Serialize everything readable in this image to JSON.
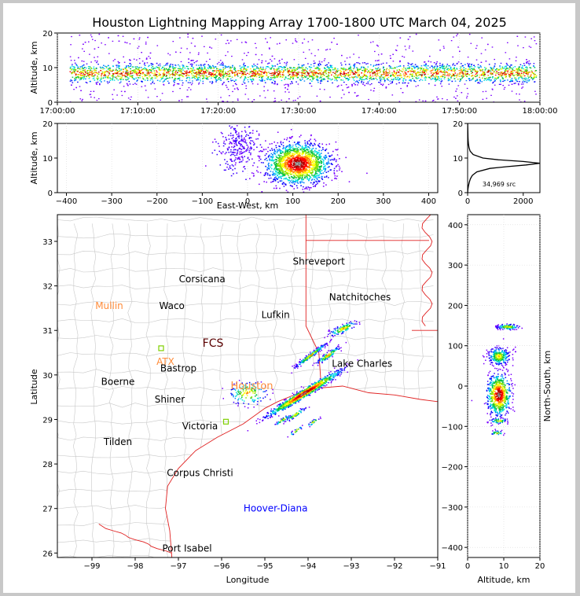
{
  "figure": {
    "title": "Houston Lightning Mapping Array 1700-1800 UTC March 04, 2025",
    "background": "#ffffff",
    "frame_color": "#c8c8c8"
  },
  "chart_data": [
    {
      "id": "altitude-time",
      "type": "scatter",
      "ylabel": "Altitude, km",
      "xlabel": "",
      "xlim": [
        "17:00:00",
        "18:00:00"
      ],
      "xticks": [
        "17:00:00",
        "17:10:00",
        "17:20:00",
        "17:30:00",
        "17:40:00",
        "17:50:00",
        "18:00:00"
      ],
      "ylim": [
        0,
        20
      ],
      "yticks": [
        "0",
        "10",
        "20"
      ],
      "dense_band_altitude_km": [
        6,
        12
      ],
      "peak_altitude_km": 8.5,
      "colormap": "rainbow density",
      "grid": true
    },
    {
      "id": "altitude-eastwest",
      "type": "scatter",
      "xlabel": "East-West, km",
      "ylabel": "Altitude, km",
      "xlim": [
        -420,
        420
      ],
      "xticks": [
        "−400",
        "−300",
        "−200",
        "−100",
        "0",
        "100",
        "200",
        "300",
        "400"
      ],
      "ylim": [
        0,
        20
      ],
      "yticks": [
        "0",
        "10",
        "20"
      ],
      "clusters": [
        {
          "x_range_km": [
            60,
            220
          ],
          "alt_range_km": [
            1,
            16
          ],
          "center_x_km": 110,
          "center_alt_km": 8.5,
          "density": "high"
        },
        {
          "x_range_km": [
            -70,
            30
          ],
          "alt_range_km": [
            3,
            20
          ],
          "center_x_km": -20,
          "center_alt_km": 13,
          "density": "low"
        }
      ],
      "grid": true
    },
    {
      "id": "altitude-histogram",
      "type": "line",
      "xlim": [
        0,
        2600
      ],
      "xticks": [
        "0",
        "2000"
      ],
      "ylim": [
        0,
        20
      ],
      "yticks": [
        "0",
        "10",
        "20"
      ],
      "annotation": "34,969 src",
      "profile": [
        {
          "alt": 0,
          "n": 0
        },
        {
          "alt": 1,
          "n": 10
        },
        {
          "alt": 2,
          "n": 30
        },
        {
          "alt": 3,
          "n": 60
        },
        {
          "alt": 4,
          "n": 100
        },
        {
          "alt": 5,
          "n": 170
        },
        {
          "alt": 6,
          "n": 330
        },
        {
          "alt": 7,
          "n": 800
        },
        {
          "alt": 7.5,
          "n": 1400
        },
        {
          "alt": 8,
          "n": 2100
        },
        {
          "alt": 8.5,
          "n": 2600
        },
        {
          "alt": 9,
          "n": 2000
        },
        {
          "alt": 9.5,
          "n": 1100
        },
        {
          "alt": 10,
          "n": 550
        },
        {
          "alt": 11,
          "n": 200
        },
        {
          "alt": 12,
          "n": 90
        },
        {
          "alt": 13,
          "n": 50
        },
        {
          "alt": 14,
          "n": 30
        },
        {
          "alt": 15,
          "n": 20
        },
        {
          "alt": 16,
          "n": 15
        },
        {
          "alt": 17,
          "n": 10
        },
        {
          "alt": 18,
          "n": 8
        },
        {
          "alt": 19,
          "n": 5
        },
        {
          "alt": 20,
          "n": 3
        }
      ]
    },
    {
      "id": "plan-view",
      "type": "scatter",
      "xlabel": "Longitude",
      "ylabel": "Latitude",
      "xlim": [
        -99.8,
        -91
      ],
      "ylim": [
        25.9,
        33.6
      ],
      "xticks": [
        "−99",
        "−98",
        "−97",
        "−96",
        "−95",
        "−94",
        "−93",
        "−92",
        "−91"
      ],
      "yticks": [
        "26",
        "27",
        "28",
        "29",
        "30",
        "31",
        "32",
        "33"
      ],
      "cities": [
        {
          "name": "Shreveport",
          "lon": -93.75,
          "lat": 32.55,
          "color": "#000000"
        },
        {
          "name": "Corsicana",
          "lon": -96.45,
          "lat": 32.15,
          "color": "#000000"
        },
        {
          "name": "Mullin",
          "lon": -98.6,
          "lat": 31.55,
          "color": "#ff8c3a"
        },
        {
          "name": "Waco",
          "lon": -97.15,
          "lat": 31.55,
          "color": "#000000"
        },
        {
          "name": "Natchitoches",
          "lon": -92.8,
          "lat": 31.75,
          "color": "#000000"
        },
        {
          "name": "Lufkin",
          "lon": -94.75,
          "lat": 31.35,
          "color": "#000000"
        },
        {
          "name": "FCS",
          "lon": -96.2,
          "lat": 30.7,
          "color": "#5a0000"
        },
        {
          "name": "ATX",
          "lon": -97.3,
          "lat": 30.3,
          "color": "#ff8c3a"
        },
        {
          "name": "Bastrop",
          "lon": -97.0,
          "lat": 30.15,
          "color": "#000000"
        },
        {
          "name": "Lake Charles",
          "lon": -92.75,
          "lat": 30.25,
          "color": "#000000"
        },
        {
          "name": "Boerne",
          "lon": -98.4,
          "lat": 29.85,
          "color": "#000000"
        },
        {
          "name": "Houston",
          "lon": -95.3,
          "lat": 29.75,
          "color": "#ff8c3a"
        },
        {
          "name": "Shiner",
          "lon": -97.2,
          "lat": 29.45,
          "color": "#000000"
        },
        {
          "name": "Victoria",
          "lon": -96.5,
          "lat": 28.85,
          "color": "#000000"
        },
        {
          "name": "Tilden",
          "lon": -98.4,
          "lat": 28.5,
          "color": "#000000"
        },
        {
          "name": "Corpus Christi",
          "lon": -96.5,
          "lat": 27.8,
          "color": "#000000"
        },
        {
          "name": "Hoover-Diana",
          "lon": -94.75,
          "lat": 27.0,
          "color": "#0000ff"
        },
        {
          "name": "Port Isabel",
          "lon": -96.8,
          "lat": 26.1,
          "color": "#000000"
        }
      ],
      "stations": [
        {
          "lon": -97.4,
          "lat": 30.6,
          "color": "#7fd000"
        },
        {
          "lon": -95.9,
          "lat": 28.95,
          "color": "#7fd000"
        }
      ],
      "clusters": [
        {
          "lon": -94.1,
          "lat": 29.6,
          "len": 1.2,
          "wid": 0.22,
          "angle": -30,
          "n": 950,
          "core": true
        },
        {
          "lon": -93.95,
          "lat": 30.45,
          "len": 0.55,
          "wid": 0.18,
          "angle": -35,
          "n": 220,
          "core": false
        },
        {
          "lon": -93.55,
          "lat": 30.45,
          "len": 0.4,
          "wid": 0.18,
          "angle": -30,
          "n": 120,
          "core": false
        },
        {
          "lon": -93.2,
          "lat": 31.05,
          "len": 0.45,
          "wid": 0.15,
          "angle": -20,
          "n": 120,
          "core": false
        },
        {
          "lon": -95.4,
          "lat": 29.6,
          "len": 0.6,
          "wid": 0.35,
          "angle": 0,
          "n": 140,
          "core": false
        },
        {
          "lon": -94.3,
          "lat": 29.12,
          "len": 0.35,
          "wid": 0.12,
          "angle": -30,
          "n": 60,
          "core": false
        },
        {
          "lon": -94.6,
          "lat": 29.0,
          "len": 0.25,
          "wid": 0.1,
          "angle": -30,
          "n": 40,
          "core": false
        },
        {
          "lon": -93.9,
          "lat": 28.95,
          "len": 0.2,
          "wid": 0.1,
          "angle": -30,
          "n": 30,
          "core": false
        },
        {
          "lon": -94.3,
          "lat": 28.75,
          "len": 0.25,
          "wid": 0.1,
          "angle": -30,
          "n": 25,
          "core": false
        }
      ]
    },
    {
      "id": "northsouth-altitude",
      "type": "scatter",
      "xlabel": "Altitude, km",
      "ylabel": "North-South, km",
      "xlim": [
        0,
        20
      ],
      "xticks": [
        "0",
        "10",
        "20"
      ],
      "ylim": [
        -425,
        425
      ],
      "yticks": [
        "400",
        "300",
        "200",
        "100",
        "0",
        "−100",
        "−200",
        "−300",
        "−400"
      ],
      "clusters": [
        {
          "ns_km": -20,
          "alt_km": 8.5,
          "ns_spread": 55,
          "alt_spread": 2.5,
          "n": 700,
          "core": true
        },
        {
          "ns_km": 75,
          "alt_km": 8.5,
          "ns_spread": 25,
          "alt_spread": 2.5,
          "n": 280,
          "core": false
        },
        {
          "ns_km": 148,
          "alt_km": 11,
          "ns_spread": 8,
          "alt_spread": 2.5,
          "n": 120,
          "core": false
        },
        {
          "ns_km": -85,
          "alt_km": 8.5,
          "ns_spread": 8,
          "alt_spread": 2.0,
          "n": 60,
          "core": false
        },
        {
          "ns_km": -115,
          "alt_km": 8,
          "ns_spread": 6,
          "alt_spread": 1.5,
          "n": 30,
          "core": false
        }
      ]
    }
  ]
}
